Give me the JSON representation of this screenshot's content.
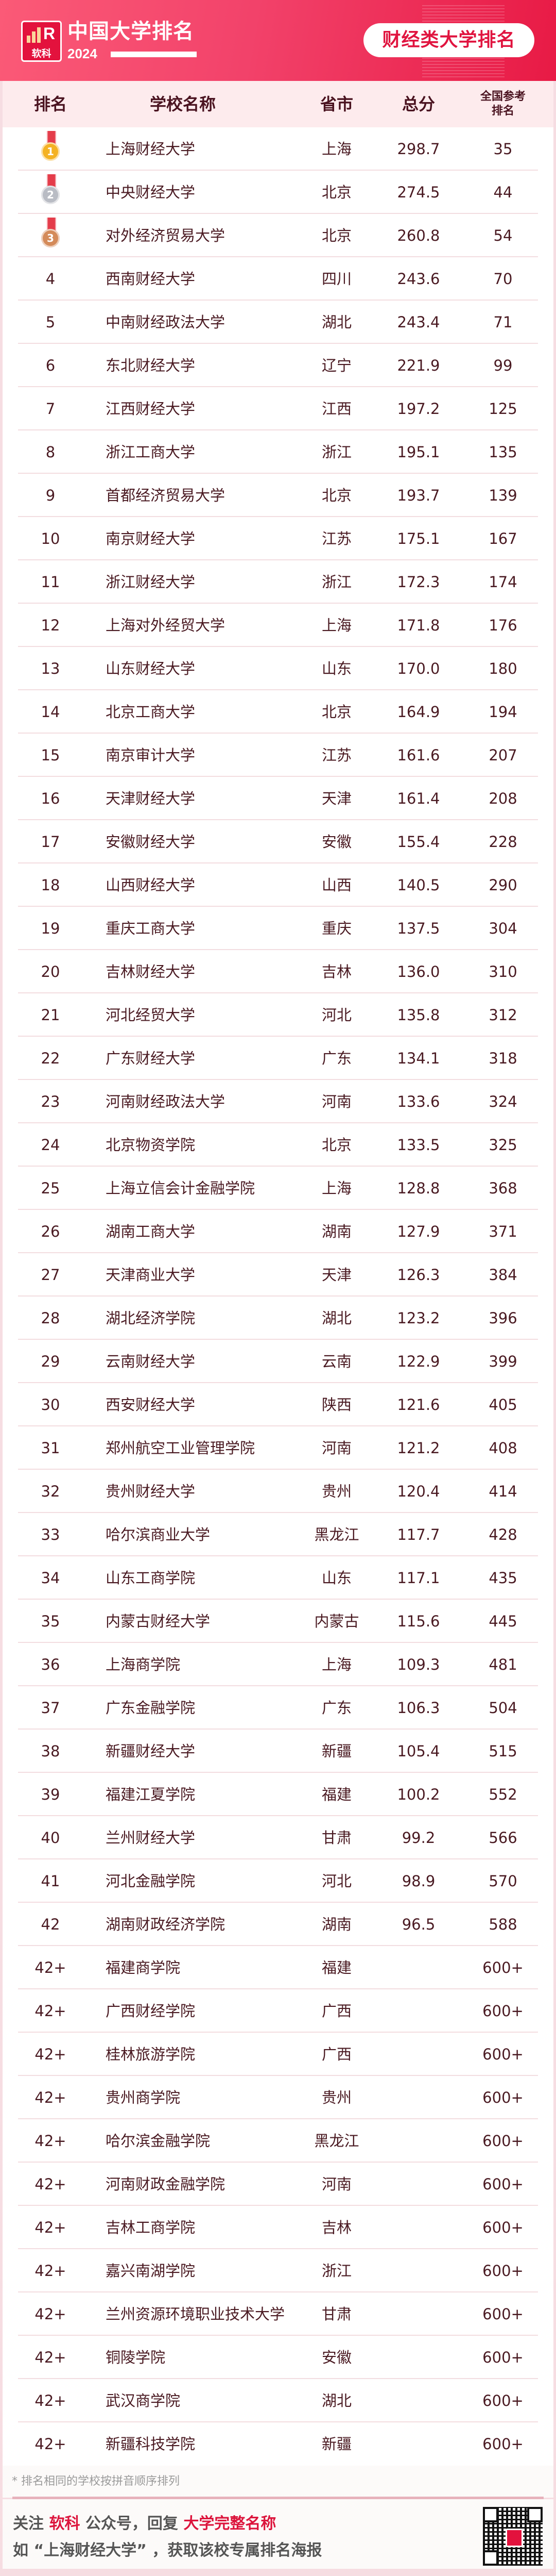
{
  "header": {
    "logo_text": "软科",
    "title": "中国大学排名",
    "year": "2024",
    "badge": "财经类大学排名"
  },
  "colors": {
    "brand_red": "#e3123d",
    "header_bg": "#fdebed",
    "text": "#4a1a22"
  },
  "table": {
    "columns": [
      "排名",
      "学校名称",
      "省市",
      "总分",
      "全国参考排名"
    ],
    "medal_icons": [
      "gold-medal-icon",
      "silver-medal-icon",
      "bronze-medal-icon"
    ],
    "rows": [
      {
        "rank": "1",
        "name": "上海财经大学",
        "province": "上海",
        "score": "298.7",
        "national": "35"
      },
      {
        "rank": "2",
        "name": "中央财经大学",
        "province": "北京",
        "score": "274.5",
        "national": "44"
      },
      {
        "rank": "3",
        "name": "对外经济贸易大学",
        "province": "北京",
        "score": "260.8",
        "national": "54"
      },
      {
        "rank": "4",
        "name": "西南财经大学",
        "province": "四川",
        "score": "243.6",
        "national": "70"
      },
      {
        "rank": "5",
        "name": "中南财经政法大学",
        "province": "湖北",
        "score": "243.4",
        "national": "71"
      },
      {
        "rank": "6",
        "name": "东北财经大学",
        "province": "辽宁",
        "score": "221.9",
        "national": "99"
      },
      {
        "rank": "7",
        "name": "江西财经大学",
        "province": "江西",
        "score": "197.2",
        "national": "125"
      },
      {
        "rank": "8",
        "name": "浙江工商大学",
        "province": "浙江",
        "score": "195.1",
        "national": "135"
      },
      {
        "rank": "9",
        "name": "首都经济贸易大学",
        "province": "北京",
        "score": "193.7",
        "national": "139"
      },
      {
        "rank": "10",
        "name": "南京财经大学",
        "province": "江苏",
        "score": "175.1",
        "national": "167"
      },
      {
        "rank": "11",
        "name": "浙江财经大学",
        "province": "浙江",
        "score": "172.3",
        "national": "174"
      },
      {
        "rank": "12",
        "name": "上海对外经贸大学",
        "province": "上海",
        "score": "171.8",
        "national": "176"
      },
      {
        "rank": "13",
        "name": "山东财经大学",
        "province": "山东",
        "score": "170.0",
        "national": "180"
      },
      {
        "rank": "14",
        "name": "北京工商大学",
        "province": "北京",
        "score": "164.9",
        "national": "194"
      },
      {
        "rank": "15",
        "name": "南京审计大学",
        "province": "江苏",
        "score": "161.6",
        "national": "207"
      },
      {
        "rank": "16",
        "name": "天津财经大学",
        "province": "天津",
        "score": "161.4",
        "national": "208"
      },
      {
        "rank": "17",
        "name": "安徽财经大学",
        "province": "安徽",
        "score": "155.4",
        "national": "228"
      },
      {
        "rank": "18",
        "name": "山西财经大学",
        "province": "山西",
        "score": "140.5",
        "national": "290"
      },
      {
        "rank": "19",
        "name": "重庆工商大学",
        "province": "重庆",
        "score": "137.5",
        "national": "304"
      },
      {
        "rank": "20",
        "name": "吉林财经大学",
        "province": "吉林",
        "score": "136.0",
        "national": "310"
      },
      {
        "rank": "21",
        "name": "河北经贸大学",
        "province": "河北",
        "score": "135.8",
        "national": "312"
      },
      {
        "rank": "22",
        "name": "广东财经大学",
        "province": "广东",
        "score": "134.1",
        "national": "318"
      },
      {
        "rank": "23",
        "name": "河南财经政法大学",
        "province": "河南",
        "score": "133.6",
        "national": "324"
      },
      {
        "rank": "24",
        "name": "北京物资学院",
        "province": "北京",
        "score": "133.5",
        "national": "325"
      },
      {
        "rank": "25",
        "name": "上海立信会计金融学院",
        "province": "上海",
        "score": "128.8",
        "national": "368"
      },
      {
        "rank": "26",
        "name": "湖南工商大学",
        "province": "湖南",
        "score": "127.9",
        "national": "371"
      },
      {
        "rank": "27",
        "name": "天津商业大学",
        "province": "天津",
        "score": "126.3",
        "national": "384"
      },
      {
        "rank": "28",
        "name": "湖北经济学院",
        "province": "湖北",
        "score": "123.2",
        "national": "396"
      },
      {
        "rank": "29",
        "name": "云南财经大学",
        "province": "云南",
        "score": "122.9",
        "national": "399"
      },
      {
        "rank": "30",
        "name": "西安财经大学",
        "province": "陕西",
        "score": "121.6",
        "national": "405"
      },
      {
        "rank": "31",
        "name": "郑州航空工业管理学院",
        "province": "河南",
        "score": "121.2",
        "national": "408"
      },
      {
        "rank": "32",
        "name": "贵州财经大学",
        "province": "贵州",
        "score": "120.4",
        "national": "414"
      },
      {
        "rank": "33",
        "name": "哈尔滨商业大学",
        "province": "黑龙江",
        "score": "117.7",
        "national": "428"
      },
      {
        "rank": "34",
        "name": "山东工商学院",
        "province": "山东",
        "score": "117.1",
        "national": "435"
      },
      {
        "rank": "35",
        "name": "内蒙古财经大学",
        "province": "内蒙古",
        "score": "115.6",
        "national": "445"
      },
      {
        "rank": "36",
        "name": "上海商学院",
        "province": "上海",
        "score": "109.3",
        "national": "481"
      },
      {
        "rank": "37",
        "name": "广东金融学院",
        "province": "广东",
        "score": "106.3",
        "national": "504"
      },
      {
        "rank": "38",
        "name": "新疆财经大学",
        "province": "新疆",
        "score": "105.4",
        "national": "515"
      },
      {
        "rank": "39",
        "name": "福建江夏学院",
        "province": "福建",
        "score": "100.2",
        "national": "552"
      },
      {
        "rank": "40",
        "name": "兰州财经大学",
        "province": "甘肃",
        "score": "99.2",
        "national": "566"
      },
      {
        "rank": "41",
        "name": "河北金融学院",
        "province": "河北",
        "score": "98.9",
        "national": "570"
      },
      {
        "rank": "42",
        "name": "湖南财政经济学院",
        "province": "湖南",
        "score": "96.5",
        "national": "588"
      },
      {
        "rank": "42+",
        "name": "福建商学院",
        "province": "福建",
        "score": "",
        "national": "600+"
      },
      {
        "rank": "42+",
        "name": "广西财经学院",
        "province": "广西",
        "score": "",
        "national": "600+"
      },
      {
        "rank": "42+",
        "name": "桂林旅游学院",
        "province": "广西",
        "score": "",
        "national": "600+"
      },
      {
        "rank": "42+",
        "name": "贵州商学院",
        "province": "贵州",
        "score": "",
        "national": "600+"
      },
      {
        "rank": "42+",
        "name": "哈尔滨金融学院",
        "province": "黑龙江",
        "score": "",
        "national": "600+"
      },
      {
        "rank": "42+",
        "name": "河南财政金融学院",
        "province": "河南",
        "score": "",
        "national": "600+"
      },
      {
        "rank": "42+",
        "name": "吉林工商学院",
        "province": "吉林",
        "score": "",
        "national": "600+"
      },
      {
        "rank": "42+",
        "name": "嘉兴南湖学院",
        "province": "浙江",
        "score": "",
        "national": "600+"
      },
      {
        "rank": "42+",
        "name": "兰州资源环境职业技术大学",
        "province": "甘肃",
        "score": "",
        "national": "600+"
      },
      {
        "rank": "42+",
        "name": "铜陵学院",
        "province": "安徽",
        "score": "",
        "national": "600+"
      },
      {
        "rank": "42+",
        "name": "武汉商学院",
        "province": "湖北",
        "score": "",
        "national": "600+"
      },
      {
        "rank": "42+",
        "name": "新疆科技学院",
        "province": "新疆",
        "score": "",
        "national": "600+"
      }
    ]
  },
  "footer": {
    "note": "* 排名相同的学校按拼音顺序排列",
    "line1_a": "关注 ",
    "line1_brand": "软科",
    "line1_b": " 公众号，回复 ",
    "line1_keyword": "大学完整名称",
    "line2": "如 “上海财经大学” ，获取该校专属排名海报",
    "qr_icon": "qr-code-icon"
  }
}
